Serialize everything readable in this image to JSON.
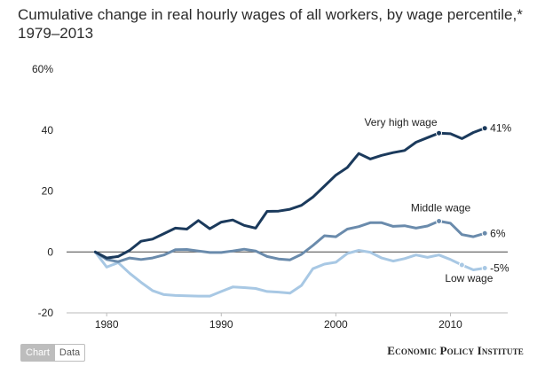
{
  "title": {
    "line1": "Cumulative change in real hourly wages of all workers, by wage percentile,*",
    "line2": "1979–2013"
  },
  "tabs": {
    "chart_label": "Chart",
    "data_label": "Data"
  },
  "source": {
    "credit": "Economic Policy Institute"
  },
  "chart_data": {
    "type": "line",
    "title": "Cumulative change in real hourly wages of all workers, by wage percentile,* 1979–2013",
    "xlabel": "",
    "ylabel": "",
    "xlim": [
      1976.5,
      2015
    ],
    "ylim": [
      -20,
      60
    ],
    "x_ticks": [
      1980,
      1990,
      2000,
      2010
    ],
    "x_tick_labels": [
      "1980",
      "1990",
      "2000",
      "2010"
    ],
    "y_ticks": [
      60,
      40,
      20,
      0,
      -20
    ],
    "y_tick_labels": [
      "60%",
      "40",
      "20",
      "0",
      "-20"
    ],
    "grid": false,
    "zero_line": true,
    "x": [
      1979,
      1980,
      1981,
      1982,
      1983,
      1984,
      1985,
      1986,
      1987,
      1988,
      1989,
      1990,
      1991,
      1992,
      1993,
      1994,
      1995,
      1996,
      1997,
      1998,
      1999,
      2000,
      2001,
      2002,
      2003,
      2004,
      2005,
      2006,
      2007,
      2008,
      2009,
      2010,
      2011,
      2012,
      2013
    ],
    "series": [
      {
        "name": "Very high wage",
        "color": "#1b3a5c",
        "end_label": "41%",
        "label_year": 2009,
        "values": [
          0,
          -2,
          -1.5,
          0.5,
          3.5,
          4.2,
          6,
          7.8,
          7.5,
          10.3,
          7.6,
          9.8,
          10.5,
          8.7,
          7.8,
          13.3,
          13.4,
          14,
          15.3,
          18,
          21.6,
          25.2,
          27.7,
          32.3,
          30.5,
          31.7,
          32.6,
          33.3,
          36,
          37.5,
          39,
          38.8,
          37.2,
          39.2,
          40.6
        ]
      },
      {
        "name": "Middle wage",
        "color": "#6a8bac",
        "end_label": "6%",
        "label_year": 2009,
        "values": [
          0,
          -2.5,
          -3.2,
          -2,
          -2.5,
          -2,
          -1,
          0.7,
          0.8,
          0.3,
          -0.2,
          -0.2,
          0.3,
          0.9,
          0.3,
          -1.5,
          -2.3,
          -2.6,
          -0.8,
          2.1,
          5.3,
          5,
          7.5,
          8.3,
          9.6,
          9.6,
          8.4,
          8.6,
          7.8,
          8.5,
          10.1,
          9.4,
          5.7,
          5,
          6.1
        ]
      },
      {
        "name": "Low wage",
        "color": "#a8c8e4",
        "end_label": "-5%",
        "label_year": 2011,
        "values": [
          0,
          -5,
          -3.5,
          -7,
          -10,
          -12.7,
          -14,
          -14.3,
          -14.4,
          -14.5,
          -14.5,
          -13,
          -11.5,
          -11.7,
          -12,
          -13,
          -13.2,
          -13.5,
          -11,
          -5.5,
          -4,
          -3.4,
          -0.5,
          0.5,
          -0.1,
          -2,
          -3,
          -2.2,
          -1,
          -1.8,
          -1,
          -2.5,
          -4.3,
          -5.9,
          -5.3
        ]
      }
    ],
    "annotations": [
      "Very high wage",
      "Middle wage",
      "Low wage"
    ]
  }
}
